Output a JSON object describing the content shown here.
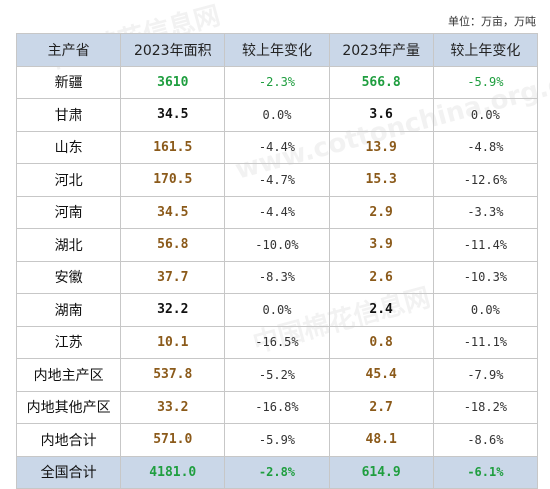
{
  "unit_label": "单位：万亩，万吨",
  "table": {
    "headers": [
      "主产省",
      "2023年面积",
      "较上年变化",
      "2023年产量",
      "较上年变化"
    ],
    "rows": [
      [
        "新疆",
        "3610",
        "-2.3%",
        "566.8",
        "-5.9%"
      ],
      [
        "甘肃",
        "34.5",
        "0.0%",
        "3.6",
        "0.0%"
      ],
      [
        "山东",
        "161.5",
        "-4.4%",
        "13.9",
        "-4.8%"
      ],
      [
        "河北",
        "170.5",
        "-4.7%",
        "15.3",
        "-12.6%"
      ],
      [
        "河南",
        "34.5",
        "-4.4%",
        "2.9",
        "-3.3%"
      ],
      [
        "湖北",
        "56.8",
        "-10.0%",
        "3.9",
        "-11.4%"
      ],
      [
        "安徽",
        "37.7",
        "-8.3%",
        "2.6",
        "-10.3%"
      ],
      [
        "湖南",
        "32.2",
        "0.0%",
        "2.4",
        "0.0%"
      ],
      [
        "江苏",
        "10.1",
        "-16.5%",
        "0.8",
        "-11.1%"
      ],
      [
        "内地主产区",
        "537.8",
        "-5.2%",
        "45.4",
        "-7.9%"
      ],
      [
        "内地其他产区",
        "33.2",
        "-16.8%",
        "2.7",
        "-18.2%"
      ],
      [
        "内地合计",
        "571.0",
        "-5.9%",
        "48.1",
        "-8.6%"
      ],
      [
        "全国合计",
        "4181.0",
        "-2.8%",
        "614.9",
        "-6.1%"
      ]
    ]
  },
  "watermark": {
    "text": "中国棉花信息网",
    "url": "www.cottonchina.org.cn"
  },
  "colors": {
    "header_bg": "#cad7e8",
    "green_highlight": "#1f9e3f",
    "brown_value": "#8b5a1a"
  }
}
